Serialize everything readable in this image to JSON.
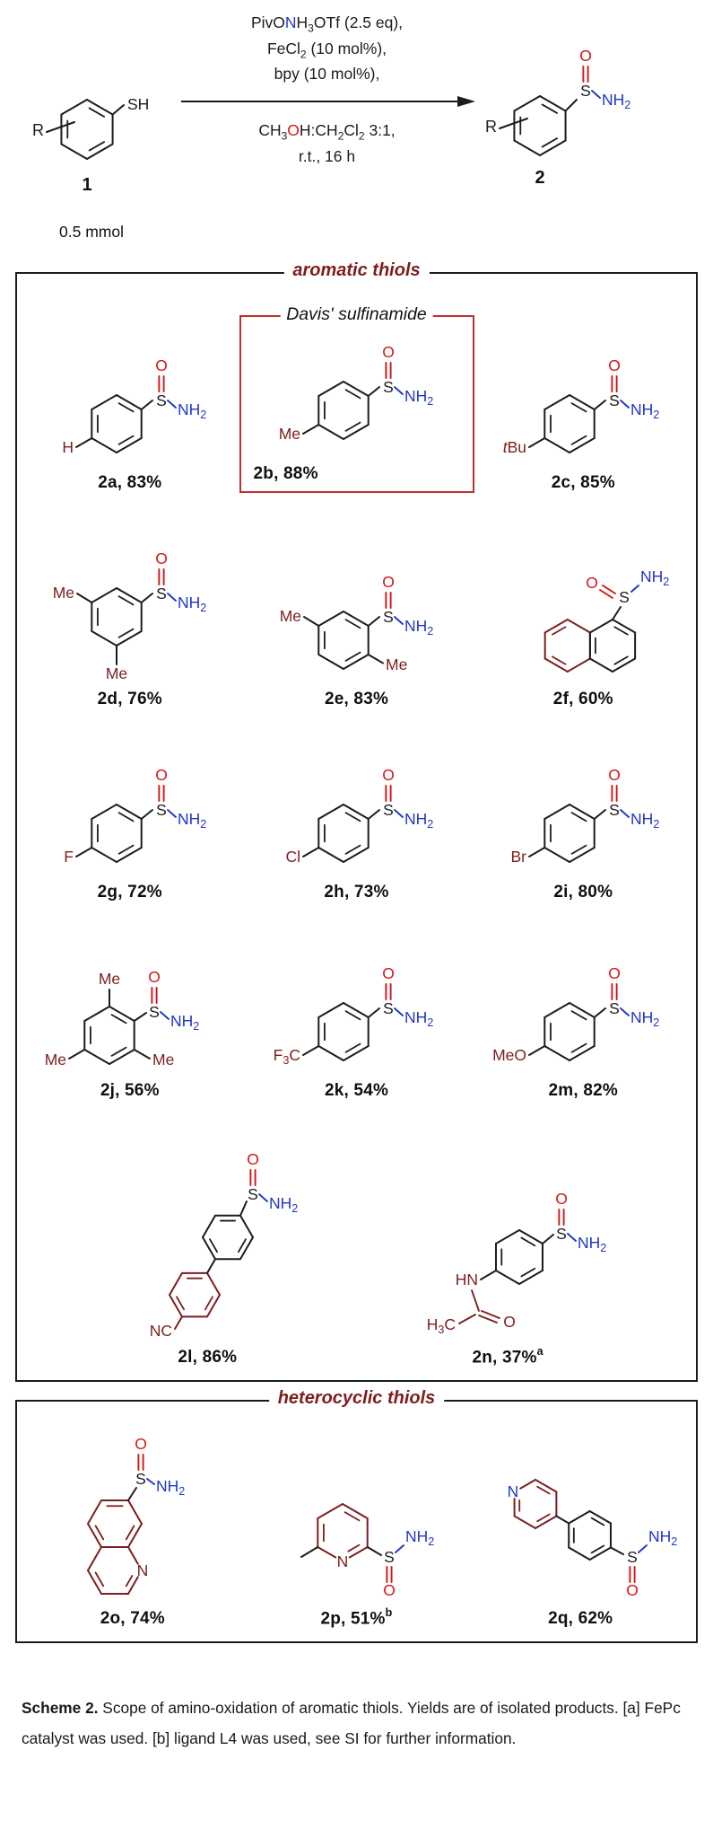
{
  "scheme": {
    "reactant": {
      "label": "1",
      "amount": "0.5 mmol",
      "thiol_text": "SH",
      "r_text": "R"
    },
    "product": {
      "label": "2",
      "r_text": "R"
    },
    "conditions_top": [
      [
        {
          "t": "PivO"
        },
        {
          "t": "N",
          "c": "n"
        },
        {
          "t": "H"
        },
        {
          "t": "3",
          "s": 1
        },
        {
          "t": "OTf (2.5 eq),"
        }
      ],
      [
        {
          "t": "FeCl"
        },
        {
          "t": "2",
          "s": 1
        },
        {
          "t": " (10 mol%),"
        }
      ],
      [
        {
          "t": "bpy (10 mol%),"
        }
      ]
    ],
    "conditions_bottom": [
      [
        {
          "t": "CH"
        },
        {
          "t": "3",
          "s": 1
        },
        {
          "t": "O",
          "c": "o"
        },
        {
          "t": "H:CH"
        },
        {
          "t": "2",
          "s": 1
        },
        {
          "t": "Cl"
        },
        {
          "t": "2",
          "s": 1
        },
        {
          "t": " 3:1,"
        }
      ],
      [
        {
          "t": "r.t.,  16 h"
        }
      ]
    ]
  },
  "atoms": {
    "sulfur": "S",
    "oxygen": "O",
    "amide": "NH2",
    "nitrogen": "N"
  },
  "aromatic": {
    "title": "aromatic thiols",
    "davis_label": "Davis' sulfinamide",
    "compounds": [
      {
        "id": "2a",
        "yield": "83%",
        "note": "",
        "structure": "phenyl-para",
        "substituent": "H"
      },
      {
        "id": "2b",
        "yield": "88%",
        "note": "",
        "structure": "phenyl-para",
        "substituent": "Me",
        "boxed": true
      },
      {
        "id": "2c",
        "yield": "85%",
        "note": "",
        "structure": "phenyl-para",
        "substituent": "tBu",
        "italic_first": true
      },
      {
        "id": "2d",
        "yield": "76%",
        "note": "",
        "structure": "phenyl-3,5",
        "substituents": [
          "Me",
          "Me"
        ]
      },
      {
        "id": "2e",
        "yield": "83%",
        "note": "",
        "structure": "phenyl-2,5",
        "substituents": [
          "Me",
          "Me"
        ]
      },
      {
        "id": "2f",
        "yield": "60%",
        "note": "",
        "structure": "naphthyl"
      },
      {
        "id": "2g",
        "yield": "72%",
        "note": "",
        "structure": "phenyl-para",
        "substituent": "F"
      },
      {
        "id": "2h",
        "yield": "73%",
        "note": "",
        "structure": "phenyl-para",
        "substituent": "Cl"
      },
      {
        "id": "2i",
        "yield": "80%",
        "note": "",
        "structure": "phenyl-para",
        "substituent": "Br"
      },
      {
        "id": "2j",
        "yield": "56%",
        "note": "",
        "structure": "mesityl",
        "substituents": [
          "Me",
          "Me",
          "Me"
        ]
      },
      {
        "id": "2k",
        "yield": "54%",
        "note": "",
        "structure": "phenyl-para",
        "substituent": "F3C"
      },
      {
        "id": "2m",
        "yield": "82%",
        "note": "",
        "structure": "phenyl-para",
        "substituent": "MeO"
      },
      {
        "id": "2l",
        "yield": "86%",
        "note": "",
        "structure": "biphenyl-CN",
        "substituent": "NC"
      },
      {
        "id": "2n",
        "yield": "37%",
        "note": "a",
        "structure": "acetamido",
        "substituents": [
          "HN",
          "H3C",
          "O"
        ]
      }
    ]
  },
  "heterocyclic": {
    "title": "heterocyclic thiols",
    "compounds": [
      {
        "id": "2o",
        "yield": "74%",
        "note": "",
        "structure": "quinoline",
        "heteroatom": "N"
      },
      {
        "id": "2p",
        "yield": "51%",
        "note": "b",
        "structure": "methylpyridine",
        "heteroatom": "N"
      },
      {
        "id": "2q",
        "yield": "62%",
        "note": "",
        "structure": "pyridylphenyl",
        "heteroatom": "N"
      }
    ]
  },
  "caption": {
    "lead": "Scheme 2.",
    "body": " Scope of amino-oxidation of aromatic thiols. Yields are of isolated products. [a] FePc catalyst was used. [b] ligand L4 was used, see SI for further information."
  },
  "colors": {
    "structure": "#1c1c1c",
    "substituent": "#7e1d1d",
    "oxygen": "#d01616",
    "nitrogen": "#2036c8",
    "highlight_box": "#c03028"
  }
}
